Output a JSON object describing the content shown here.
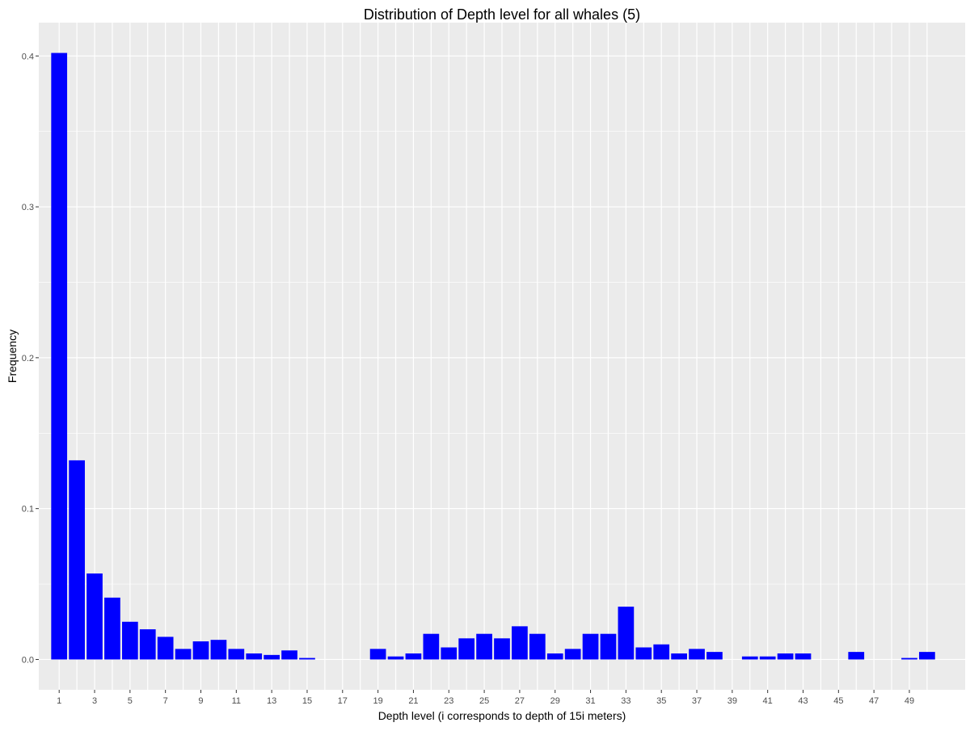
{
  "chart_data": {
    "type": "bar",
    "title": "Distribution of Depth level for all whales (5)",
    "xlabel": "Depth level (i corresponds to depth of 15i meters)",
    "ylabel": "Frequency",
    "x": [
      1,
      2,
      3,
      4,
      5,
      6,
      7,
      8,
      9,
      10,
      11,
      12,
      13,
      14,
      15,
      16,
      17,
      18,
      19,
      20,
      21,
      22,
      23,
      24,
      25,
      26,
      27,
      28,
      29,
      30,
      31,
      32,
      33,
      34,
      35,
      36,
      37,
      38,
      39,
      40,
      41,
      42,
      43,
      44,
      45,
      46,
      47,
      48,
      49,
      50
    ],
    "values": [
      0.402,
      0.132,
      0.057,
      0.041,
      0.025,
      0.02,
      0.015,
      0.007,
      0.012,
      0.013,
      0.007,
      0.004,
      0.003,
      0.006,
      0.001,
      0,
      0,
      0,
      0.007,
      0.002,
      0.004,
      0.017,
      0.008,
      0.014,
      0.017,
      0.014,
      0.022,
      0.017,
      0.004,
      0.007,
      0.017,
      0.017,
      0.035,
      0.008,
      0.01,
      0.004,
      0.007,
      0.005,
      0,
      0.002,
      0.002,
      0.004,
      0.004,
      0,
      0,
      0.005,
      0,
      0,
      0.001,
      0.005
    ],
    "x_ticks": [
      "1",
      "3",
      "5",
      "7",
      "9",
      "11",
      "13",
      "15",
      "17",
      "19",
      "21",
      "23",
      "25",
      "27",
      "29",
      "31",
      "33",
      "35",
      "37",
      "39",
      "41",
      "43",
      "45",
      "47",
      "49"
    ],
    "x_tick_values": [
      1,
      3,
      5,
      7,
      9,
      11,
      13,
      15,
      17,
      19,
      21,
      23,
      25,
      27,
      29,
      31,
      33,
      35,
      37,
      39,
      41,
      43,
      45,
      47,
      49
    ],
    "y_ticks": [
      "0.0",
      "0.1",
      "0.2",
      "0.3",
      "0.4"
    ],
    "y_tick_values": [
      0,
      0.1,
      0.2,
      0.3,
      0.4
    ],
    "xlim": [
      -0.15,
      52.15
    ],
    "ylim": [
      -0.0201,
      0.4221
    ],
    "bar_color": "#0000FF",
    "panel_background": "#EBEBEB",
    "grid_color": "#FFFFFF",
    "grid": true,
    "legend": "none"
  }
}
